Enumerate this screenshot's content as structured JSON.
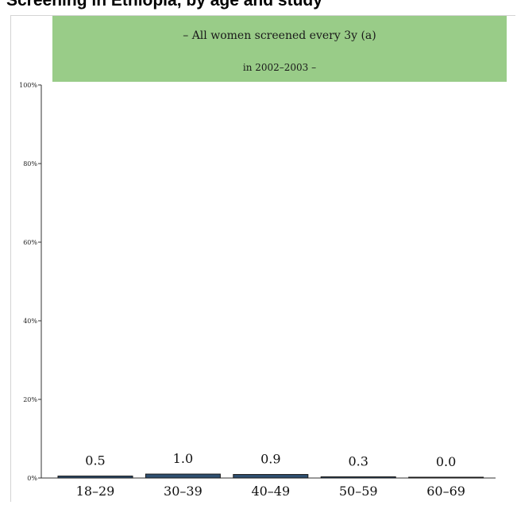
{
  "chart_data": {
    "type": "bar",
    "title": "Screening in Ethiopia, by age and study",
    "subtitle_line1": "– All women screened every 3y (a)",
    "subtitle_line2": "in 2002–2003 –",
    "categories": [
      "18–29",
      "30–39",
      "40–49",
      "50–59",
      "60–69"
    ],
    "values": [
      0.5,
      1.0,
      0.9,
      0.3,
      0.0
    ],
    "value_labels": [
      "0.5",
      "1.0",
      "0.9",
      "0.3",
      "0.0"
    ],
    "y_ticks": [
      0,
      20,
      40,
      60,
      80,
      100
    ],
    "y_tick_labels": [
      "0%",
      "20%",
      "40%",
      "60%",
      "80%",
      "100%"
    ],
    "ylim": [
      0,
      100
    ],
    "xlabel": "",
    "ylabel": "",
    "bar_color": "#2e4f70",
    "banner_color": "#99cc88",
    "grid": false
  }
}
